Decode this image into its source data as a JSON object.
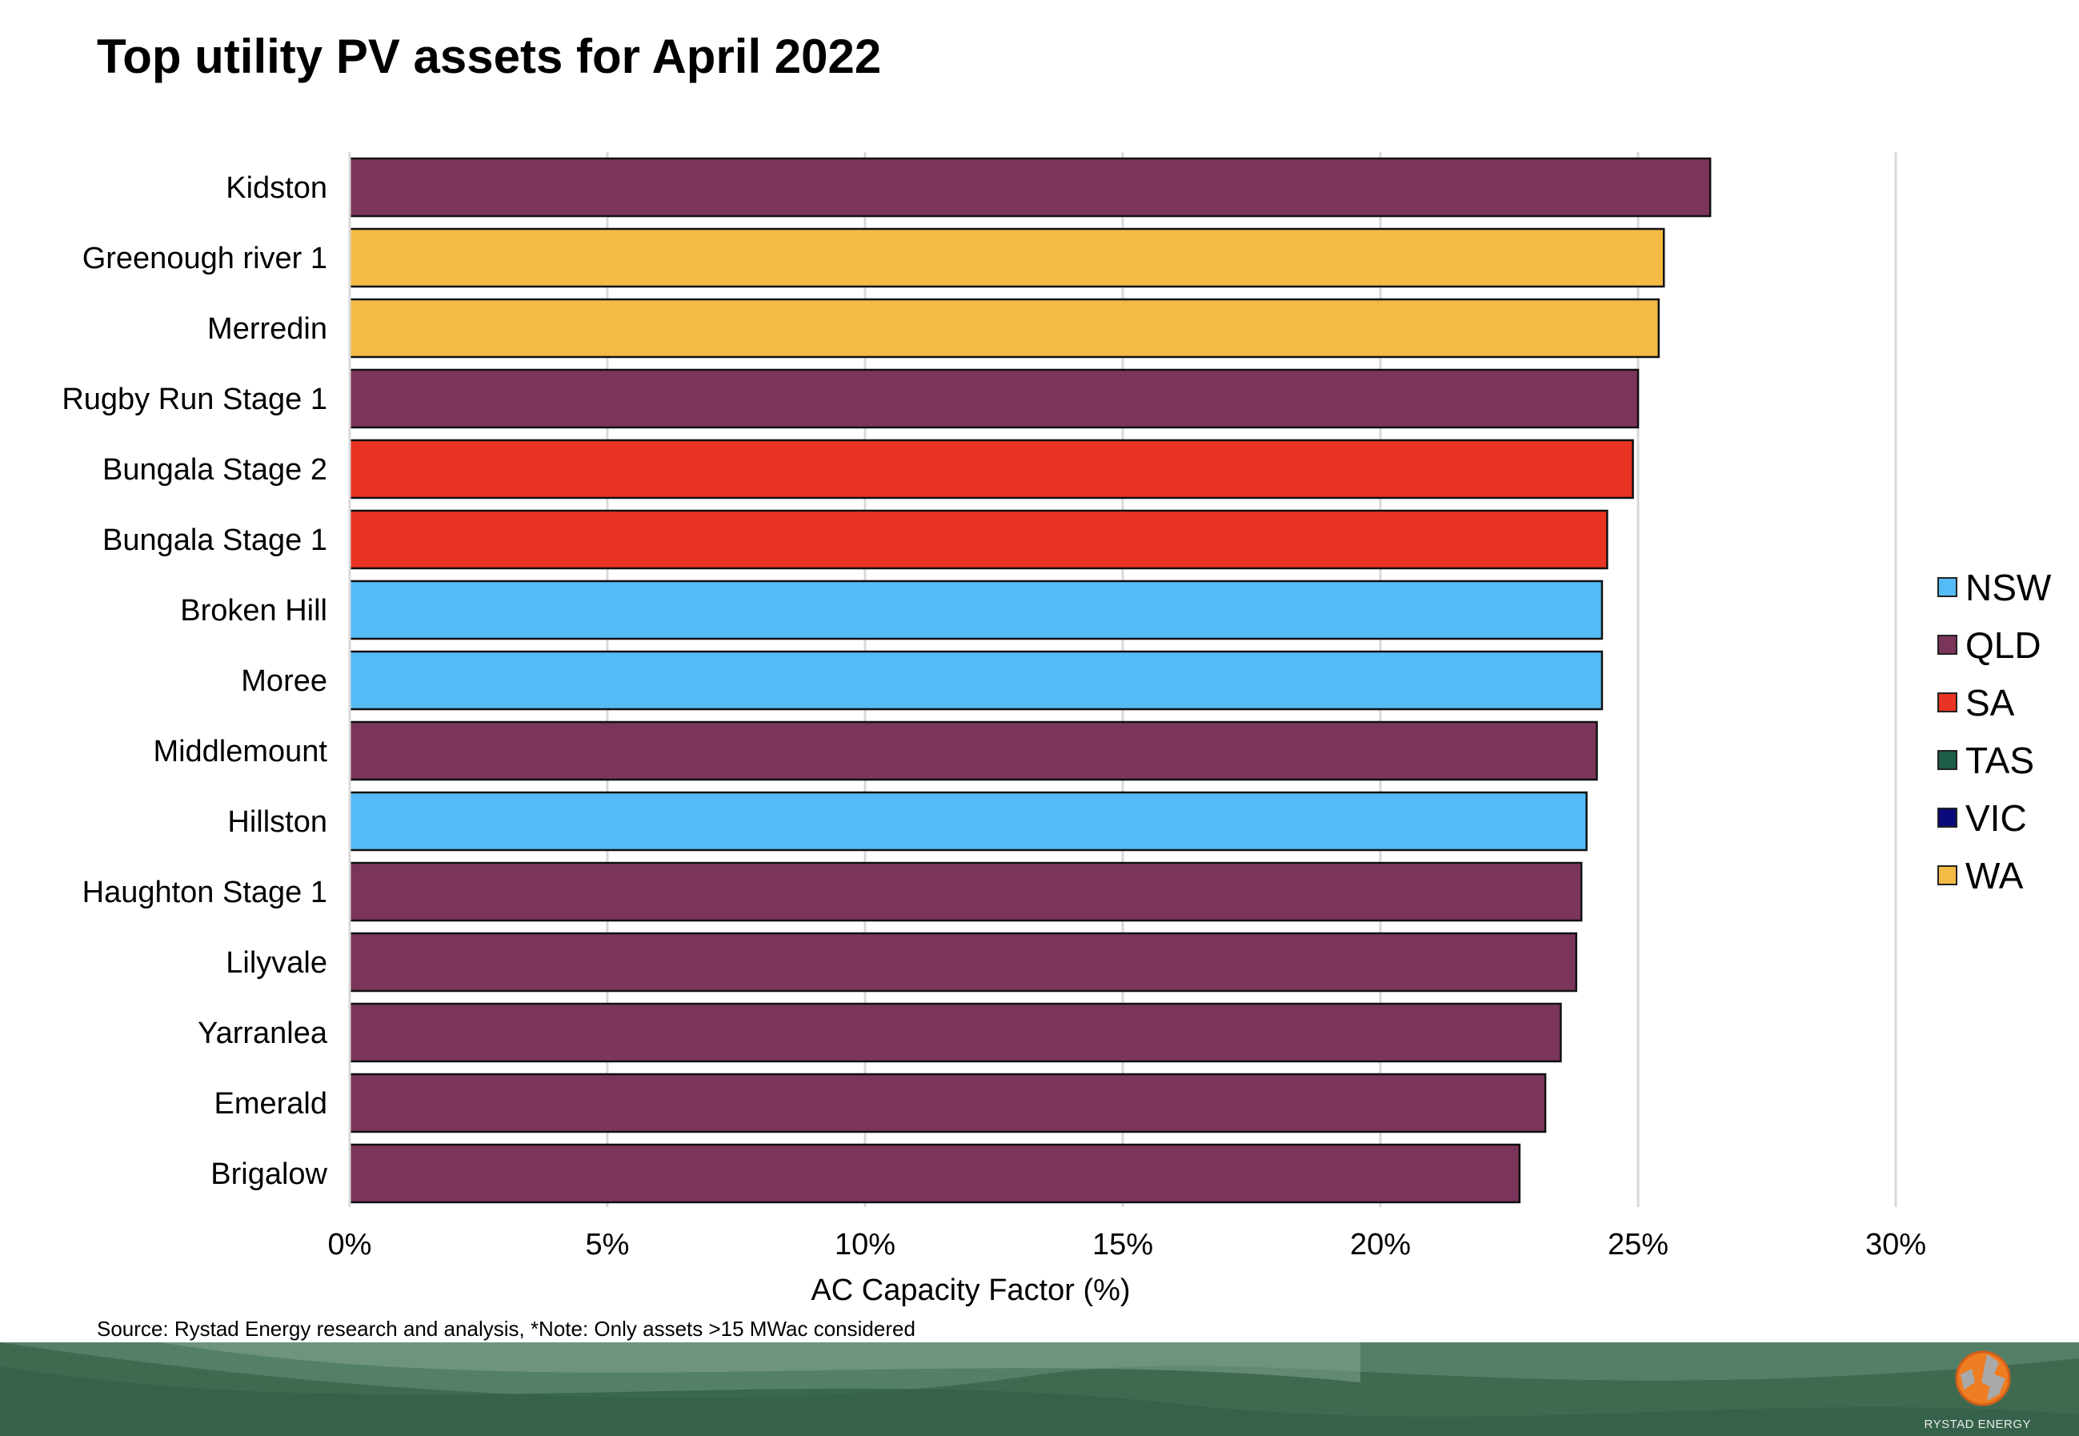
{
  "title": "Top utility PV assets for April 2022",
  "source": "Source: Rystad Energy research and analysis, *Note: Only assets >15 MWac considered",
  "logo_text": "RYSTAD ENERGY",
  "chart_data": {
    "type": "bar",
    "orientation": "horizontal",
    "title": "Top utility PV assets for April 2022",
    "xlabel": "AC Capacity Factor (%)",
    "ylabel": "",
    "xlim": [
      0,
      30
    ],
    "xticks": [
      "0%",
      "5%",
      "10%",
      "15%",
      "20%",
      "25%",
      "30%"
    ],
    "xtick_values": [
      0,
      5,
      10,
      15,
      20,
      25,
      30
    ],
    "grid": "vertical",
    "legend_position": "right",
    "legend": [
      {
        "name": "NSW",
        "color": "#55bbf7"
      },
      {
        "name": "QLD",
        "color": "#7b355b"
      },
      {
        "name": "SA",
        "color": "#e93323"
      },
      {
        "name": "TAS",
        "color": "#1d5e47"
      },
      {
        "name": "VIC",
        "color": "#0a0a7a"
      },
      {
        "name": "WA",
        "color": "#f4bb44"
      }
    ],
    "categories": [
      "Kidston",
      "Greenough river 1",
      "Merredin",
      "Rugby Run Stage 1",
      "Bungala Stage 2",
      "Bungala Stage 1",
      "Broken Hill",
      "Moree",
      "Middlemount",
      "Hillston",
      "Haughton Stage 1",
      "Lilyvale",
      "Yarranlea",
      "Emerald",
      "Brigalow"
    ],
    "states": [
      "QLD",
      "WA",
      "WA",
      "QLD",
      "SA",
      "SA",
      "NSW",
      "NSW",
      "QLD",
      "NSW",
      "QLD",
      "QLD",
      "QLD",
      "QLD",
      "QLD"
    ],
    "values": [
      26.4,
      25.5,
      25.4,
      25.0,
      24.9,
      24.4,
      24.3,
      24.3,
      24.2,
      24.0,
      23.9,
      23.8,
      23.5,
      23.2,
      22.7
    ]
  }
}
